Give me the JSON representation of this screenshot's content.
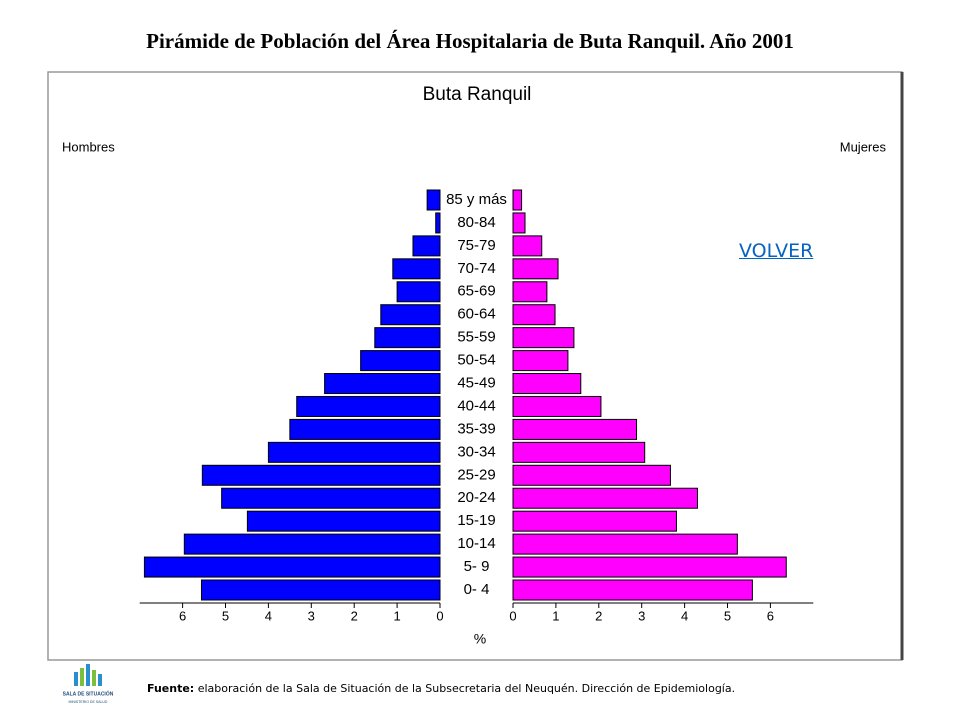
{
  "title": "Pirámide de Población del Área Hospitalaria de Buta Ranquil. Año 2001",
  "chart_data": {
    "type": "pyramid",
    "title": "Buta Ranquil",
    "xlabel": "%",
    "categories": [
      "0- 4",
      "5- 9",
      "10-14",
      "15-19",
      "20-24",
      "25-29",
      "30-34",
      "35-39",
      "40-44",
      "45-49",
      "50-54",
      "55-59",
      "60-64",
      "65-69",
      "70-74",
      "75-79",
      "80-84",
      "85 y más"
    ],
    "series": [
      {
        "name": "Hombres",
        "color": "#0000ff",
        "values": [
          5.56,
          6.89,
          5.96,
          4.49,
          5.09,
          5.54,
          4.0,
          3.5,
          3.34,
          2.69,
          1.85,
          1.52,
          1.38,
          1.0,
          1.1,
          0.63,
          0.1,
          0.3
        ]
      },
      {
        "name": "Mujeres",
        "color": "#ff00ff",
        "values": [
          5.58,
          6.37,
          5.23,
          3.81,
          4.3,
          3.67,
          3.07,
          2.88,
          2.05,
          1.58,
          1.28,
          1.42,
          0.98,
          0.79,
          1.05,
          0.67,
          0.28,
          0.2
        ]
      }
    ],
    "xlim": [
      0,
      7
    ],
    "xticks": [
      0,
      1,
      2,
      3,
      4,
      5,
      6
    ]
  },
  "link": "VOLVER",
  "source": {
    "label": "Fuente:",
    "text": "elaboración de la Sala de Situación de la Subsecretaria del Neuquén. Dirección de Epidemiología."
  },
  "logo": {
    "name": "SALA DE SITUACIÓN",
    "org": "MINISTERIO DE SALUD"
  }
}
